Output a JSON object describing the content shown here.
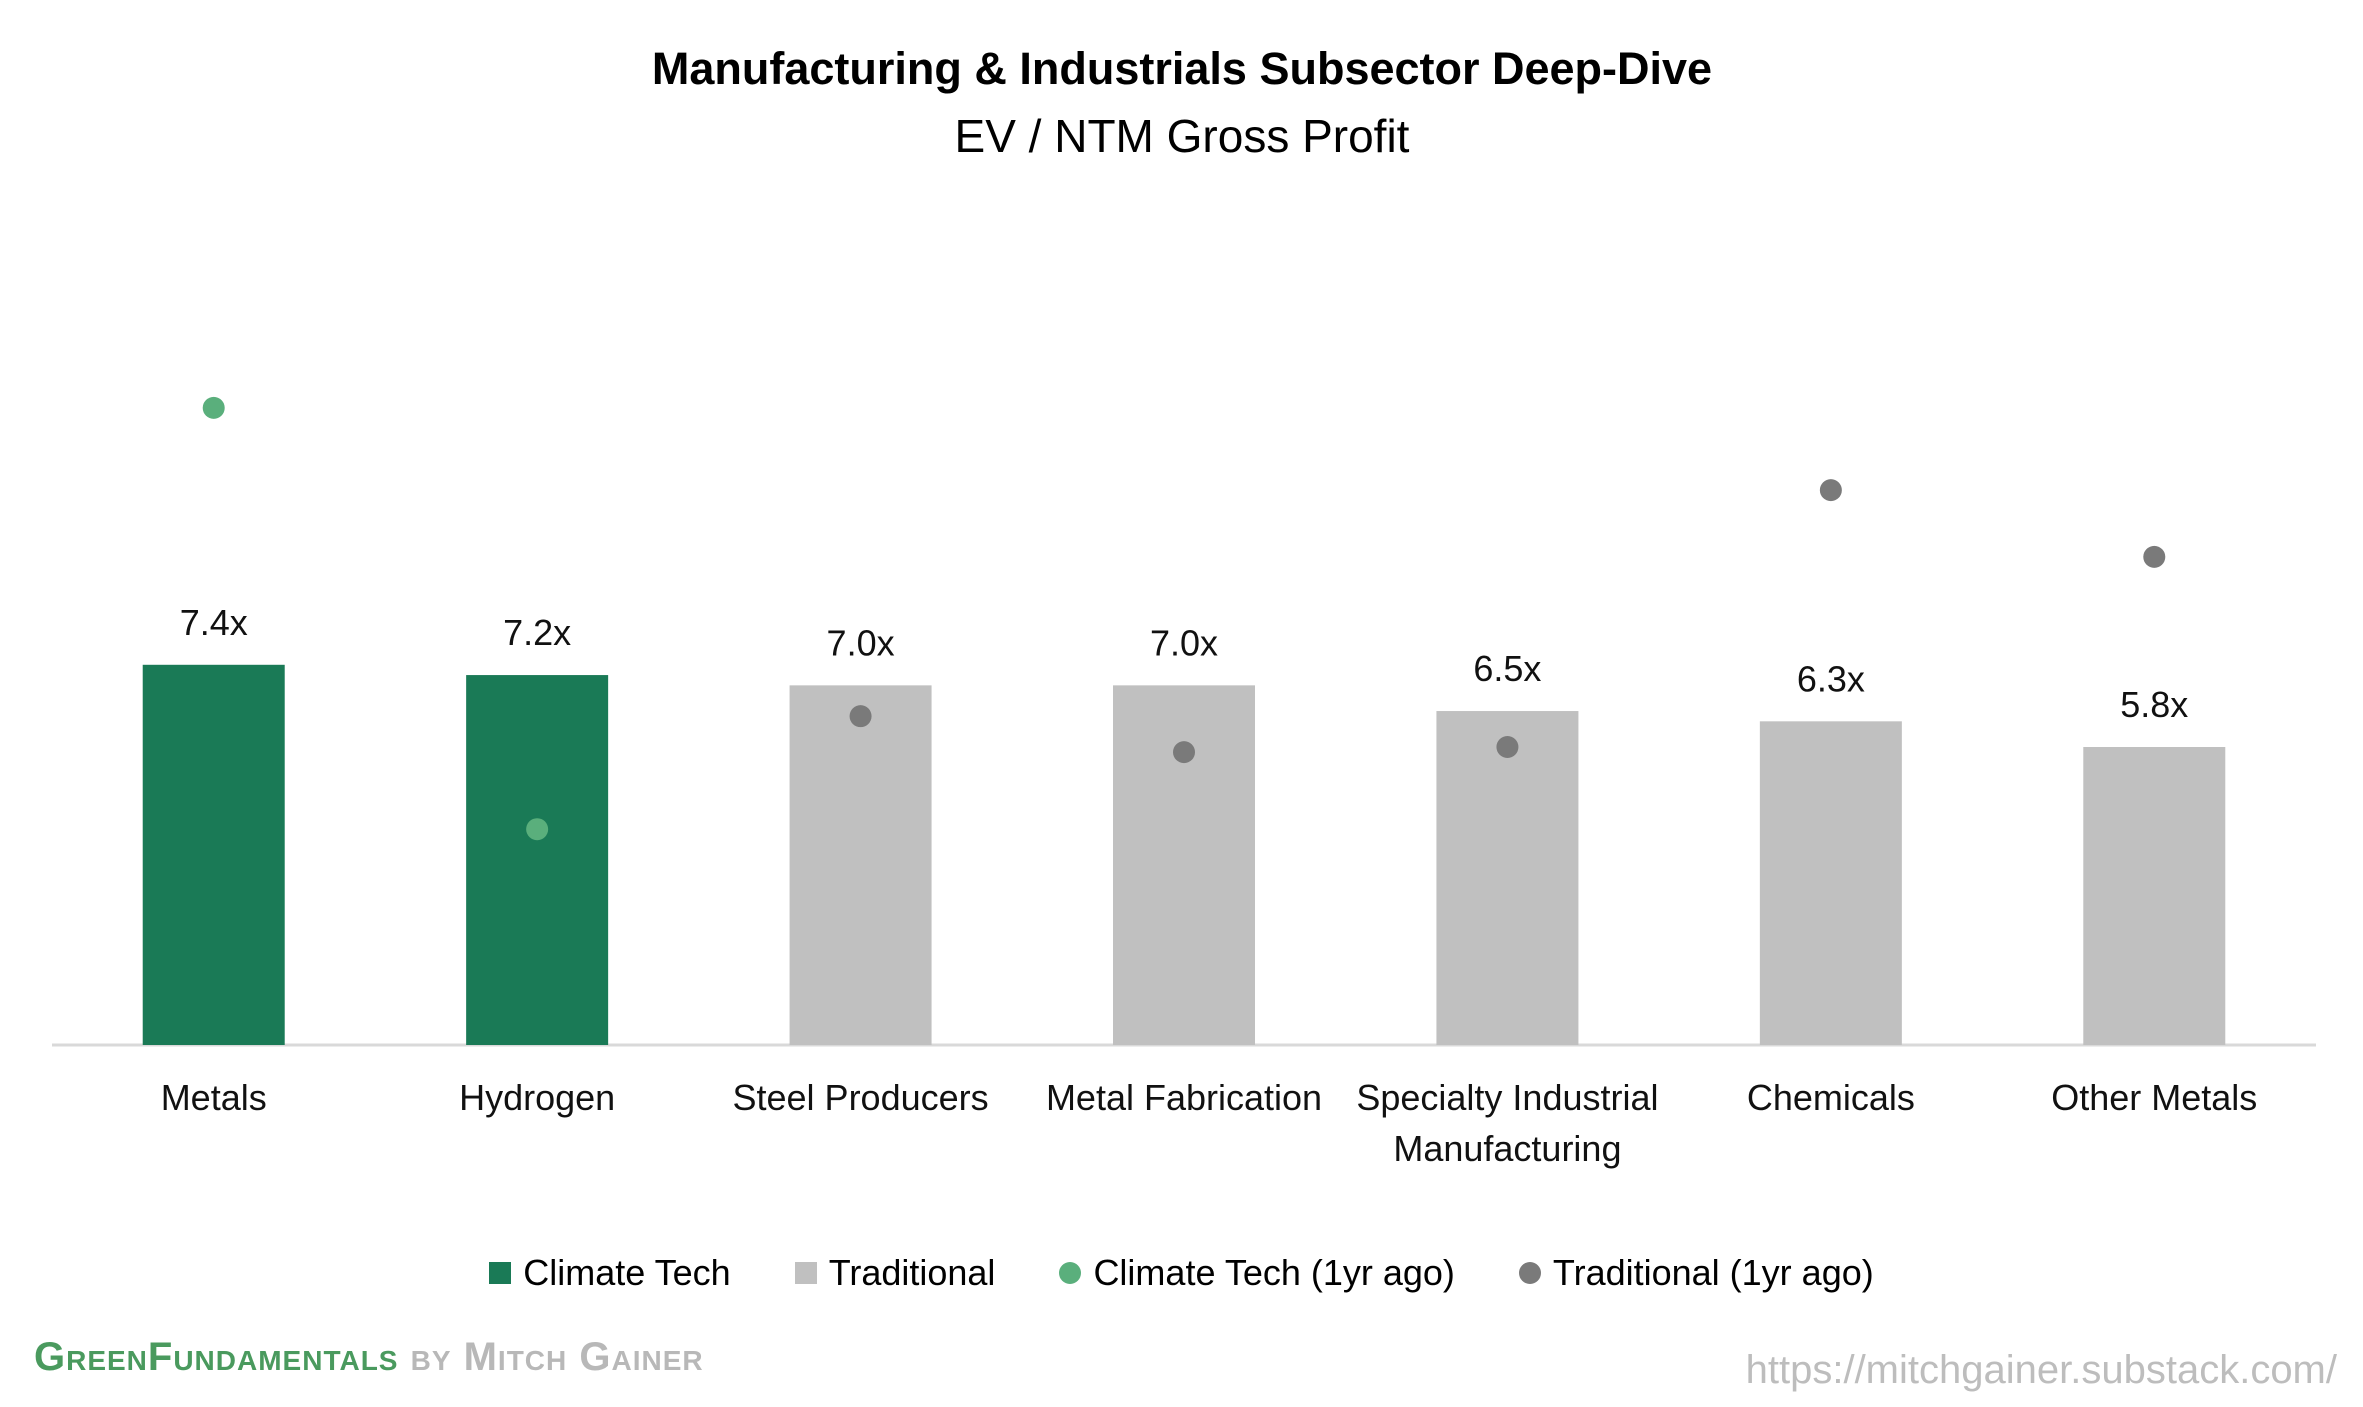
{
  "chart_data": {
    "type": "bar",
    "title": "Manufacturing & Industrials Subsector Deep-Dive",
    "subtitle": "EV / NTM Gross Profit",
    "categories": [
      "Metals",
      "Hydrogen",
      "Steel Producers",
      "Metal Fabrication",
      "Specialty Industrial Manufacturing",
      "Chemicals",
      "Other Metals"
    ],
    "category_lines": [
      [
        "Metals"
      ],
      [
        "Hydrogen"
      ],
      [
        "Steel Producers"
      ],
      [
        "Metal Fabrication"
      ],
      [
        "Specialty Industrial",
        "Manufacturing"
      ],
      [
        "Chemicals"
      ],
      [
        "Other Metals"
      ]
    ],
    "values": [
      7.4,
      7.2,
      7.0,
      7.0,
      6.5,
      6.3,
      5.8
    ],
    "value_labels": [
      "7.4x",
      "7.2x",
      "7.0x",
      "7.0x",
      "6.5x",
      "6.3x",
      "5.8x"
    ],
    "groups": [
      "Climate Tech",
      "Climate Tech",
      "Traditional",
      "Traditional",
      "Traditional",
      "Traditional",
      "Traditional"
    ],
    "one_year_ago": [
      12.4,
      4.2,
      6.4,
      5.7,
      5.8,
      10.8,
      9.5
    ],
    "ylim": [
      0,
      14.5
    ],
    "legend": [
      {
        "label": "Climate Tech",
        "shape": "square",
        "color": "#1a7a56"
      },
      {
        "label": "Traditional",
        "shape": "square",
        "color": "#c0c0c0"
      },
      {
        "label": "Climate Tech (1yr ago)",
        "shape": "circle",
        "color": "#5aaf7c"
      },
      {
        "label": "Traditional (1yr ago)",
        "shape": "circle",
        "color": "#7a7a7a"
      }
    ],
    "legend_position": "bottom",
    "grid": false,
    "colors": {
      "climate_bar": "#1a7a56",
      "traditional_bar": "#c0c0c0",
      "climate_dot": "#5aaf7c",
      "traditional_dot": "#7a7a7a",
      "axis": "#d9d9d9"
    }
  },
  "branding": {
    "green_text": "GreenFundamentals",
    "gray_text": "by Mitch Gainer",
    "url": "https://mitchgainer.substack.com/"
  }
}
